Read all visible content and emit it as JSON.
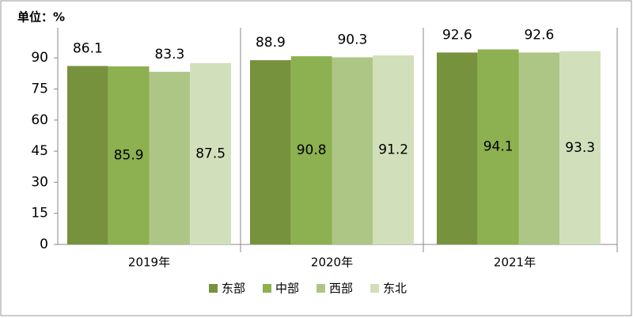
{
  "chart_data": {
    "type": "bar",
    "title": "单位：%",
    "categories": [
      "2019年",
      "2020年",
      "2021年"
    ],
    "series": [
      {
        "name": "东部",
        "color": "#76923c",
        "values": [
          86.1,
          88.9,
          92.6
        ]
      },
      {
        "name": "中部",
        "color": "#8db050",
        "values": [
          85.9,
          90.8,
          94.1
        ]
      },
      {
        "name": "西部",
        "color": "#adc686",
        "values": [
          83.3,
          90.3,
          92.6
        ]
      },
      {
        "name": "东北",
        "color": "#d2dfbb",
        "values": [
          87.5,
          91.2,
          93.3
        ]
      }
    ],
    "ylim": [
      0,
      100
    ],
    "yticks": [
      0,
      15,
      30,
      45,
      60,
      75,
      90
    ],
    "grid": false
  }
}
